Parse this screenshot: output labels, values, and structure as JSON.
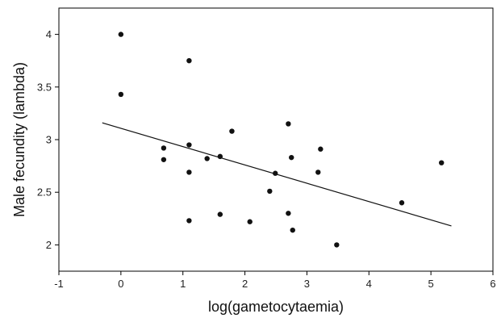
{
  "chart_data": {
    "type": "scatter",
    "title": "",
    "xlabel": "log(gametocytaemia)",
    "ylabel": "Male fecundity (lambda)",
    "xlim": [
      -1,
      6
    ],
    "ylim": [
      1.75,
      4.25
    ],
    "xticks": [
      -1,
      0,
      1,
      2,
      3,
      4,
      5,
      6
    ],
    "yticks": [
      2,
      2.5,
      3,
      3.5,
      4
    ],
    "grid": false,
    "points": [
      {
        "x": 0.0,
        "y": 4.0
      },
      {
        "x": 0.0,
        "y": 3.43
      },
      {
        "x": 0.69,
        "y": 2.92
      },
      {
        "x": 0.69,
        "y": 2.81
      },
      {
        "x": 1.1,
        "y": 3.75
      },
      {
        "x": 1.1,
        "y": 2.95
      },
      {
        "x": 1.1,
        "y": 2.69
      },
      {
        "x": 1.1,
        "y": 2.23
      },
      {
        "x": 1.39,
        "y": 2.82
      },
      {
        "x": 1.6,
        "y": 2.84
      },
      {
        "x": 1.6,
        "y": 2.29
      },
      {
        "x": 1.79,
        "y": 3.08
      },
      {
        "x": 2.08,
        "y": 2.22
      },
      {
        "x": 2.4,
        "y": 2.51
      },
      {
        "x": 2.49,
        "y": 2.68
      },
      {
        "x": 2.7,
        "y": 3.15
      },
      {
        "x": 2.7,
        "y": 2.3
      },
      {
        "x": 2.75,
        "y": 2.83
      },
      {
        "x": 2.77,
        "y": 2.14
      },
      {
        "x": 3.18,
        "y": 2.69
      },
      {
        "x": 3.22,
        "y": 2.91
      },
      {
        "x": 3.48,
        "y": 2.0
      },
      {
        "x": 4.53,
        "y": 2.4
      },
      {
        "x": 5.17,
        "y": 2.78
      }
    ],
    "trendline": {
      "x": [
        -0.3,
        5.33
      ],
      "y": [
        3.16,
        2.18
      ]
    }
  }
}
